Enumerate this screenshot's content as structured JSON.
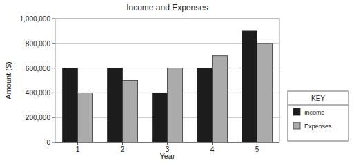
{
  "chart_data": {
    "type": "bar",
    "title": "Income and Expenses",
    "x_label": "Year",
    "y_label": "Amount ($)",
    "categories": [
      "1",
      "2",
      "3",
      "4",
      "5"
    ],
    "series": [
      {
        "name": "Income",
        "color": "#1c1c1c",
        "values": [
          600000,
          600000,
          400000,
          600000,
          900000
        ]
      },
      {
        "name": "Expenses",
        "color": "#ababab",
        "values": [
          400000,
          500000,
          600000,
          700000,
          800000
        ]
      }
    ],
    "ylim": [
      0,
      1000000
    ],
    "yticks": [
      0,
      {
        "value": 200000,
        "label": "200,000"
      },
      {
        "value": 400000,
        "label": "400,000"
      },
      {
        "value": 600000,
        "label": "600,000"
      },
      {
        "value": 800000,
        "label": "800,000"
      },
      {
        "value": 1000000,
        "label": "1,000,000"
      }
    ],
    "grid": true,
    "legend": "right",
    "legend_title": "KEY"
  }
}
